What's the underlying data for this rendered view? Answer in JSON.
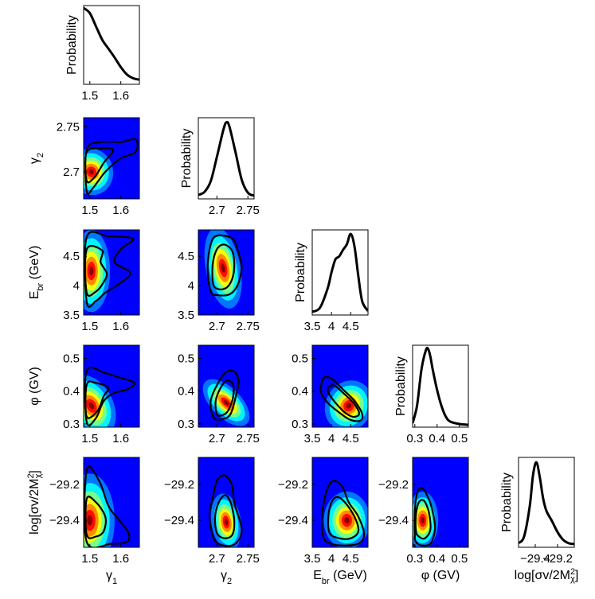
{
  "chart_data": {
    "type": "corner-plot",
    "title": "",
    "ylabel_1d": "Probability",
    "params": [
      {
        "key": "g1",
        "name": "γ₁",
        "label": "γ",
        "sub": "1",
        "sup": "",
        "suffix": "",
        "range": [
          1.48,
          1.66
        ],
        "ticks": [
          {
            "v": 1.5,
            "t": "1.5"
          },
          {
            "v": 1.6,
            "t": "1.6"
          }
        ]
      },
      {
        "key": "g2",
        "name": "γ₂",
        "label": "γ",
        "sub": "2",
        "sup": "",
        "suffix": "",
        "range": [
          2.67,
          2.76
        ],
        "ticks": [
          {
            "v": 2.7,
            "t": "2.7"
          },
          {
            "v": 2.75,
            "t": "2.75"
          }
        ]
      },
      {
        "key": "ebr",
        "name": "E_br (GeV)",
        "label": "E",
        "sub": "br",
        "sup": "",
        "suffix": " (GeV)",
        "range": [
          3.5,
          4.95
        ],
        "ticks": [
          {
            "v": 3.5,
            "t": "3.5"
          },
          {
            "v": 4,
            "t": "4"
          },
          {
            "v": 4.5,
            "t": "4.5"
          }
        ]
      },
      {
        "key": "phi",
        "name": "φ (GV)",
        "label": "φ (GV)",
        "sub": "",
        "sup": "",
        "suffix": "",
        "range": [
          0.29,
          0.54
        ],
        "ticks": [
          {
            "v": 0.3,
            "t": "0.3"
          },
          {
            "v": 0.4,
            "t": "0.4"
          },
          {
            "v": 0.5,
            "t": "0.5"
          }
        ]
      },
      {
        "key": "sv",
        "name": "log[σv/2M²χ]",
        "label": "log[σv/2M",
        "sub": "χ",
        "sup": "2",
        "suffix": "]",
        "range": [
          -29.55,
          -29.05
        ],
        "ticks": [
          {
            "v": -29.4,
            "t": "−29.4"
          },
          {
            "v": -29.2,
            "t": "−29.2"
          }
        ]
      }
    ],
    "marginals": [
      {
        "param": "g1",
        "x": [
          1.48,
          1.5,
          1.52,
          1.54,
          1.56,
          1.58,
          1.6,
          1.62,
          1.64,
          1.66
        ],
        "y": [
          1.0,
          0.93,
          0.75,
          0.57,
          0.45,
          0.33,
          0.2,
          0.1,
          0.05,
          0.03
        ]
      },
      {
        "param": "g2",
        "x": [
          2.67,
          2.68,
          2.69,
          2.7,
          2.71,
          2.715,
          2.72,
          2.73,
          2.74,
          2.75,
          2.76
        ],
        "y": [
          0.02,
          0.06,
          0.2,
          0.52,
          0.86,
          0.97,
          0.92,
          0.58,
          0.22,
          0.05,
          0.01
        ]
      },
      {
        "param": "ebr",
        "x": [
          3.5,
          3.7,
          3.9,
          4.0,
          4.1,
          4.2,
          4.3,
          4.4,
          4.5,
          4.6,
          4.7,
          4.8,
          4.95
        ],
        "y": [
          0.01,
          0.06,
          0.3,
          0.5,
          0.66,
          0.7,
          0.78,
          0.85,
          0.98,
          0.82,
          0.45,
          0.14,
          0.02
        ]
      },
      {
        "param": "phi",
        "x": [
          0.29,
          0.31,
          0.33,
          0.35,
          0.36,
          0.37,
          0.38,
          0.4,
          0.42,
          0.44,
          0.46,
          0.5,
          0.54
        ],
        "y": [
          0.02,
          0.25,
          0.72,
          0.97,
          0.98,
          0.88,
          0.72,
          0.45,
          0.24,
          0.1,
          0.04,
          0.01,
          0.0
        ]
      },
      {
        "param": "sv",
        "x": [
          -29.55,
          -29.5,
          -29.45,
          -29.42,
          -29.39,
          -29.36,
          -29.33,
          -29.3,
          -29.25,
          -29.2,
          -29.15,
          -29.1,
          -29.05
        ],
        "y": [
          0.02,
          0.1,
          0.45,
          0.82,
          0.97,
          0.8,
          0.55,
          0.4,
          0.28,
          0.15,
          0.06,
          0.02,
          0.01
        ]
      }
    ],
    "joints": [
      {
        "x": "g1",
        "y": "g2",
        "peak": [
          1.505,
          2.7
        ],
        "spread": [
          0.035,
          0.013
        ],
        "rho": 0.35,
        "outer": [
          [
            1.49,
            2.678
          ],
          [
            1.49,
            2.725
          ],
          [
            1.54,
            2.733
          ],
          [
            1.6,
            2.733
          ],
          [
            1.648,
            2.736
          ],
          [
            1.648,
            2.722
          ],
          [
            1.6,
            2.715
          ],
          [
            1.55,
            2.7
          ],
          [
            1.51,
            2.682
          ]
        ],
        "inner": [
          [
            1.49,
            2.69
          ],
          [
            1.49,
            2.722
          ],
          [
            1.54,
            2.726
          ],
          [
            1.575,
            2.724
          ],
          [
            1.545,
            2.71
          ],
          [
            1.515,
            2.694
          ]
        ]
      },
      {
        "x": "g1",
        "y": "ebr",
        "peak": [
          1.505,
          4.25
        ],
        "spread": [
          0.03,
          0.35
        ],
        "rho": 0.0,
        "outer": [
          [
            1.49,
            3.72
          ],
          [
            1.49,
            4.83
          ],
          [
            1.56,
            4.84
          ],
          [
            1.64,
            4.8
          ],
          [
            1.6,
            4.62
          ],
          [
            1.58,
            4.4
          ],
          [
            1.63,
            4.22
          ],
          [
            1.6,
            4.05
          ],
          [
            1.55,
            3.88
          ],
          [
            1.52,
            3.74
          ]
        ],
        "inner": [
          [
            1.49,
            3.88
          ],
          [
            1.49,
            4.62
          ],
          [
            1.54,
            4.6
          ],
          [
            1.535,
            4.4
          ],
          [
            1.555,
            4.2
          ],
          [
            1.54,
            4.02
          ],
          [
            1.52,
            3.9
          ]
        ]
      },
      {
        "x": "g1",
        "y": "phi",
        "peak": [
          1.505,
          0.355
        ],
        "spread": [
          0.035,
          0.05
        ],
        "rho": 0.45,
        "outer": [
          [
            1.49,
            0.305
          ],
          [
            1.49,
            0.462
          ],
          [
            1.55,
            0.455
          ],
          [
            1.6,
            0.44
          ],
          [
            1.645,
            0.425
          ],
          [
            1.62,
            0.405
          ],
          [
            1.58,
            0.395
          ],
          [
            1.545,
            0.37
          ],
          [
            1.52,
            0.318
          ]
        ],
        "inner": [
          [
            1.49,
            0.322
          ],
          [
            1.49,
            0.42
          ],
          [
            1.52,
            0.425
          ],
          [
            1.56,
            0.41
          ],
          [
            1.545,
            0.385
          ],
          [
            1.525,
            0.34
          ]
        ]
      },
      {
        "x": "g1",
        "y": "sv",
        "peak": [
          1.5,
          -29.4
        ],
        "spread": [
          0.04,
          0.13
        ],
        "rho": 0.0,
        "outer": [
          [
            1.49,
            -29.52
          ],
          [
            1.49,
            -29.12
          ],
          [
            1.53,
            -29.18
          ],
          [
            1.56,
            -29.32
          ],
          [
            1.595,
            -29.4
          ],
          [
            1.625,
            -29.47
          ],
          [
            1.62,
            -29.52
          ],
          [
            1.57,
            -29.53
          ]
        ],
        "inner": [
          [
            1.49,
            -29.48
          ],
          [
            1.49,
            -29.28
          ],
          [
            1.52,
            -29.3
          ],
          [
            1.55,
            -29.38
          ],
          [
            1.545,
            -29.46
          ],
          [
            1.52,
            -29.49
          ]
        ]
      },
      {
        "x": "g2",
        "y": "ebr",
        "peak": [
          2.71,
          4.3
        ],
        "spread": [
          0.014,
          0.35
        ],
        "rho": 0.1,
        "outer": [
          [
            2.69,
            3.9
          ],
          [
            2.685,
            4.3
          ],
          [
            2.69,
            4.7
          ],
          [
            2.7,
            4.85
          ],
          [
            2.725,
            4.8
          ],
          [
            2.735,
            4.55
          ],
          [
            2.74,
            4.3
          ],
          [
            2.733,
            4.0
          ],
          [
            2.72,
            3.85
          ],
          [
            2.7,
            3.84
          ]
        ],
        "inner": [
          [
            2.695,
            4.0
          ],
          [
            2.693,
            4.35
          ],
          [
            2.7,
            4.62
          ],
          [
            2.712,
            4.7
          ],
          [
            2.725,
            4.58
          ],
          [
            2.728,
            4.3
          ],
          [
            2.722,
            4.05
          ],
          [
            2.71,
            3.94
          ]
        ]
      },
      {
        "x": "g2",
        "y": "phi",
        "peak": [
          2.715,
          0.365
        ],
        "spread": [
          0.012,
          0.045
        ],
        "rho": 0.75,
        "outer": [
          [
            2.695,
            0.318
          ],
          [
            2.69,
            0.37
          ],
          [
            2.702,
            0.425
          ],
          [
            2.715,
            0.458
          ],
          [
            2.728,
            0.46
          ],
          [
            2.735,
            0.43
          ],
          [
            2.73,
            0.38
          ],
          [
            2.722,
            0.33
          ],
          [
            2.71,
            0.315
          ]
        ],
        "inner": [
          [
            2.7,
            0.33
          ],
          [
            2.698,
            0.37
          ],
          [
            2.706,
            0.41
          ],
          [
            2.716,
            0.432
          ],
          [
            2.726,
            0.42
          ],
          [
            2.726,
            0.38
          ],
          [
            2.718,
            0.34
          ],
          [
            2.708,
            0.326
          ]
        ]
      },
      {
        "x": "ebr",
        "y": "phi",
        "peak": [
          4.45,
          0.355
        ],
        "spread": [
          0.3,
          0.04
        ],
        "rho": -0.7,
        "outer": [
          [
            3.72,
            0.4
          ],
          [
            3.8,
            0.44
          ],
          [
            4.0,
            0.438
          ],
          [
            4.3,
            0.405
          ],
          [
            4.6,
            0.37
          ],
          [
            4.8,
            0.33
          ],
          [
            4.75,
            0.31
          ],
          [
            4.5,
            0.312
          ],
          [
            4.2,
            0.335
          ],
          [
            3.9,
            0.365
          ]
        ],
        "inner": [
          [
            3.9,
            0.405
          ],
          [
            4.05,
            0.418
          ],
          [
            4.3,
            0.395
          ],
          [
            4.6,
            0.36
          ],
          [
            4.72,
            0.33
          ],
          [
            4.55,
            0.322
          ],
          [
            4.3,
            0.34
          ],
          [
            4.0,
            0.38
          ]
        ]
      },
      {
        "x": "g2",
        "y": "sv",
        "peak": [
          2.715,
          -29.41
        ],
        "spread": [
          0.012,
          0.08
        ],
        "rho": 0.1,
        "outer": [
          [
            2.695,
            -29.5
          ],
          [
            2.688,
            -29.38
          ],
          [
            2.693,
            -29.28
          ],
          [
            2.7,
            -29.18
          ],
          [
            2.712,
            -29.15
          ],
          [
            2.724,
            -29.2
          ],
          [
            2.728,
            -29.3
          ],
          [
            2.74,
            -29.45
          ],
          [
            2.73,
            -29.53
          ],
          [
            2.71,
            -29.54
          ]
        ],
        "inner": [
          [
            2.7,
            -29.47
          ],
          [
            2.697,
            -29.38
          ],
          [
            2.703,
            -29.3
          ],
          [
            2.713,
            -29.26
          ],
          [
            2.722,
            -29.3
          ],
          [
            2.728,
            -29.4
          ],
          [
            2.725,
            -29.48
          ],
          [
            2.712,
            -29.5
          ]
        ]
      },
      {
        "x": "ebr",
        "y": "sv",
        "peak": [
          4.4,
          -29.4
        ],
        "spread": [
          0.3,
          0.08
        ],
        "rho": 0.0,
        "outer": [
          [
            3.8,
            -29.5
          ],
          [
            3.75,
            -29.4
          ],
          [
            3.82,
            -29.28
          ],
          [
            3.95,
            -29.2
          ],
          [
            4.1,
            -29.18
          ],
          [
            4.3,
            -29.22
          ],
          [
            4.45,
            -29.3
          ],
          [
            4.7,
            -29.38
          ],
          [
            4.85,
            -29.48
          ],
          [
            4.7,
            -29.53
          ],
          [
            4.3,
            -29.54
          ],
          [
            4.0,
            -29.53
          ]
        ],
        "inner": [
          [
            3.95,
            -29.47
          ],
          [
            3.92,
            -29.38
          ],
          [
            4.0,
            -29.3
          ],
          [
            4.15,
            -29.27
          ],
          [
            4.35,
            -29.3
          ],
          [
            4.6,
            -29.38
          ],
          [
            4.7,
            -29.46
          ],
          [
            4.5,
            -29.5
          ],
          [
            4.2,
            -29.5
          ]
        ]
      },
      {
        "x": "phi",
        "y": "sv",
        "peak": [
          0.335,
          -29.4
        ],
        "spread": [
          0.035,
          0.08
        ],
        "rho": 0.0,
        "outer": [
          [
            0.3,
            -29.48
          ],
          [
            0.3,
            -29.35
          ],
          [
            0.31,
            -29.25
          ],
          [
            0.33,
            -29.22
          ],
          [
            0.355,
            -29.26
          ],
          [
            0.38,
            -29.35
          ],
          [
            0.39,
            -29.45
          ],
          [
            0.37,
            -29.53
          ],
          [
            0.33,
            -29.54
          ],
          [
            0.305,
            -29.52
          ]
        ],
        "inner": [
          [
            0.305,
            -29.46
          ],
          [
            0.305,
            -29.37
          ],
          [
            0.318,
            -29.3
          ],
          [
            0.34,
            -29.29
          ],
          [
            0.362,
            -29.35
          ],
          [
            0.37,
            -29.45
          ],
          [
            0.345,
            -29.5
          ],
          [
            0.318,
            -29.49
          ]
        ]
      }
    ],
    "colormap": [
      "#00007f",
      "#0000ff",
      "#0080ff",
      "#00ffff",
      "#80ff80",
      "#ffff00",
      "#ff8000",
      "#ff0000",
      "#7f0000"
    ]
  }
}
